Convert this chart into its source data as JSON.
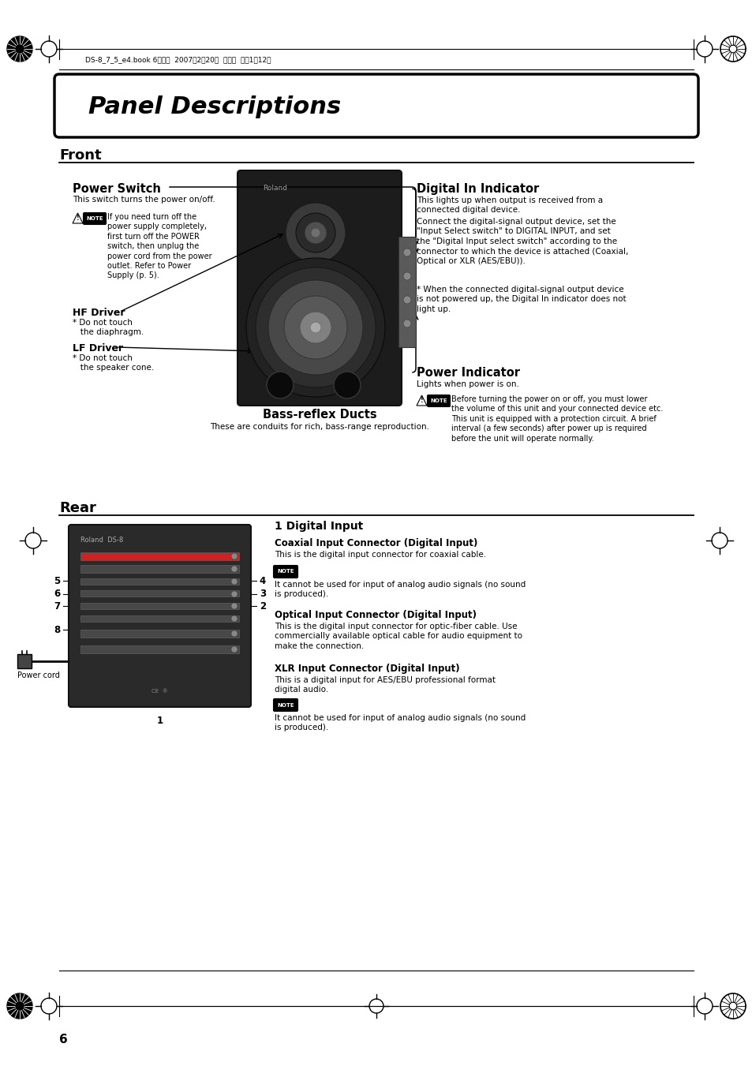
{
  "page_bg": "#ffffff",
  "title": "Panel Descriptions",
  "section_front": "Front",
  "section_rear": "Rear",
  "header_text": "DS-8_7_5_e4.book 6ページ  2007年2月20日  火曜日  午後1時12分",
  "page_number": "6",
  "power_switch_title": "Power Switch",
  "power_switch_desc": "This switch turns the power on/off.",
  "power_switch_note": "If you need turn off the\npower supply completely,\nfirst turn off the POWER\nswitch, then unplug the\npower cord from the power\noutlet. Refer to Power\nSupply (p. 5).",
  "hf_driver_title": "HF Driver",
  "hf_driver_desc": "* Do not touch\n   the diaphragm.",
  "lf_driver_title": "LF Driver",
  "lf_driver_desc": "* Do not touch\n   the speaker cone.",
  "bass_reflex_title": "Bass-reflex Ducts",
  "bass_reflex_desc": "These are conduits for rich, bass-range reproduction.",
  "digital_in_title": "Digital In Indicator",
  "digital_in_desc1": "This lights up when output is received from a\nconnected digital device.",
  "digital_in_desc2": "Connect the digital-signal output device, set the\n\"Input Select switch\" to DIGITAL INPUT, and set\nthe \"Digital Input select switch\" according to the\nconnector to which the device is attached (Coaxial,\nOptical or XLR (AES/EBU)).",
  "digital_in_note": "* When the connected digital-signal output device\nis not powered up, the Digital In indicator does not\nlight up.",
  "power_indicator_title": "Power Indicator",
  "power_indicator_desc": "Lights when power is on.",
  "power_indicator_note": "Before turning the power on or off, you must lower\nthe volume of this unit and your connected device etc.\nThis unit is equipped with a protection circuit. A brief\ninterval (a few seconds) after power up is required\nbefore the unit will operate normally.",
  "rear_1_title": "1 Digital Input",
  "rear_coaxial_title": "Coaxial Input Connector (Digital Input)",
  "rear_coaxial_desc": "This is the digital input connector for coaxial cable.",
  "rear_coaxial_note": "It cannot be used for input of analog audio signals (no sound\nis produced).",
  "rear_optical_title": "Optical Input Connector (Digital Input)",
  "rear_optical_desc": "This is the digital input connector for optic-fiber cable. Use\ncommercially available optical cable for audio equipment to\nmake the connection.",
  "rear_xlr_title": "XLR Input Connector (Digital Input)",
  "rear_xlr_desc": "This is a digital input for AES/EBU professional format\ndigital audio.",
  "rear_xlr_note": "It cannot be used for input of analog audio signals (no sound\nis produced).",
  "power_cord_label": "Power cord"
}
